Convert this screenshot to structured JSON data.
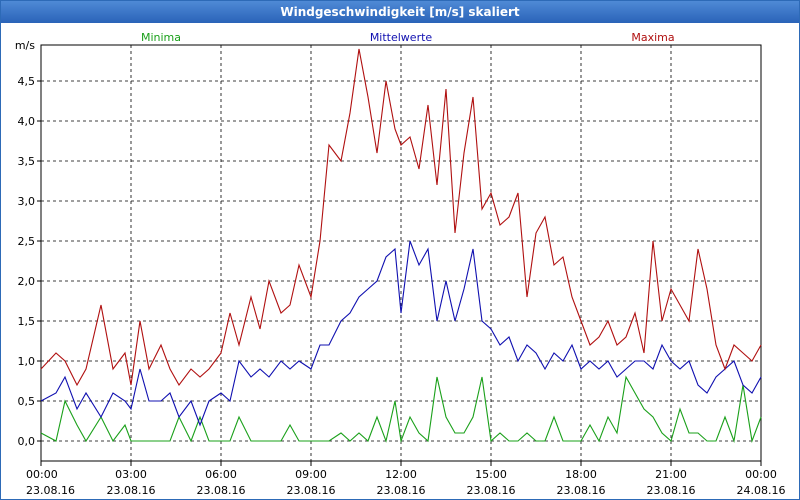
{
  "window": {
    "title": "Windgeschwindigkeit [m/s] skaliert"
  },
  "chart_data": {
    "type": "line",
    "title": "Windgeschwindigkeit [m/s] skaliert",
    "ylabel": "m/s",
    "ylim": [
      -0.25,
      4.95
    ],
    "yticks": [
      0,
      0.5,
      1.0,
      1.5,
      2.0,
      2.5,
      3.0,
      3.5,
      4.0,
      4.5
    ],
    "ytick_labels": [
      "0,0",
      "0,5",
      "1,0",
      "1,5",
      "2,0",
      "2,5",
      "3,0",
      "3,5",
      "4,0",
      "4,5"
    ],
    "xlim": [
      0,
      24
    ],
    "xticks": [
      0,
      3,
      6,
      9,
      12,
      15,
      18,
      21,
      24
    ],
    "xtick_labels": [
      [
        "00:00",
        "23.08.16"
      ],
      [
        "03:00",
        "23.08.16"
      ],
      [
        "06:00",
        "23.08.16"
      ],
      [
        "09:00",
        "23.08.16"
      ],
      [
        "12:00",
        "23.08.16"
      ],
      [
        "15:00",
        "23.08.16"
      ],
      [
        "18:00",
        "23.08.16"
      ],
      [
        "21:00",
        "23.08.16"
      ],
      [
        "00:00",
        "24.08.16"
      ]
    ],
    "grid": true,
    "legend_position": "top",
    "series": [
      {
        "name": "Minima",
        "color": "#1aa01a",
        "x": [
          0,
          0.5,
          0.8,
          1.2,
          1.5,
          2,
          2.4,
          2.8,
          3,
          3.3,
          3.6,
          4,
          4.3,
          4.6,
          5,
          5.3,
          5.6,
          6,
          6.3,
          6.6,
          7,
          7.3,
          7.6,
          8,
          8.3,
          8.6,
          9,
          9.3,
          9.6,
          10,
          10.3,
          10.6,
          10.9,
          11.2,
          11.5,
          11.8,
          12,
          12.3,
          12.6,
          12.9,
          13.2,
          13.5,
          13.8,
          14.1,
          14.4,
          14.7,
          15,
          15.3,
          15.6,
          15.9,
          16.2,
          16.5,
          16.8,
          17.1,
          17.4,
          17.7,
          18,
          18.3,
          18.6,
          18.9,
          19.2,
          19.5,
          19.8,
          20.1,
          20.4,
          20.7,
          21,
          21.3,
          21.6,
          21.9,
          22.2,
          22.5,
          22.8,
          23.1,
          23.4,
          23.7,
          24
        ],
        "y": [
          0.1,
          0.0,
          0.5,
          0.2,
          0.0,
          0.3,
          0.0,
          0.2,
          0.0,
          0.0,
          0.0,
          0.0,
          0.0,
          0.3,
          0.0,
          0.3,
          0.0,
          0.0,
          0.0,
          0.3,
          0.0,
          0.0,
          0.0,
          0.0,
          0.2,
          0.0,
          0.0,
          0.0,
          0.0,
          0.1,
          0.0,
          0.1,
          0.0,
          0.3,
          0.0,
          0.5,
          0.0,
          0.3,
          0.1,
          0.0,
          0.8,
          0.3,
          0.1,
          0.1,
          0.3,
          0.8,
          0.0,
          0.1,
          0.0,
          0.0,
          0.1,
          0.0,
          0.0,
          0.3,
          0.0,
          0.0,
          0.0,
          0.2,
          0.0,
          0.3,
          0.1,
          0.8,
          0.6,
          0.4,
          0.3,
          0.1,
          0.0,
          0.4,
          0.1,
          0.1,
          0.0,
          0.0,
          0.3,
          0.0,
          0.7,
          0.0,
          0.3
        ]
      },
      {
        "name": "Mittelwerte",
        "color": "#1010b0",
        "x": [
          0,
          0.5,
          0.8,
          1.2,
          1.5,
          2,
          2.4,
          2.8,
          3,
          3.3,
          3.6,
          4,
          4.3,
          4.6,
          5,
          5.3,
          5.6,
          6,
          6.3,
          6.6,
          7,
          7.3,
          7.6,
          8,
          8.3,
          8.6,
          9,
          9.3,
          9.6,
          10,
          10.3,
          10.6,
          10.9,
          11.2,
          11.5,
          11.8,
          12,
          12.3,
          12.6,
          12.9,
          13.2,
          13.5,
          13.8,
          14.1,
          14.4,
          14.7,
          15,
          15.3,
          15.6,
          15.9,
          16.2,
          16.5,
          16.8,
          17.1,
          17.4,
          17.7,
          18,
          18.3,
          18.6,
          18.9,
          19.2,
          19.5,
          19.8,
          20.1,
          20.4,
          20.7,
          21,
          21.3,
          21.6,
          21.9,
          22.2,
          22.5,
          22.8,
          23.1,
          23.4,
          23.7,
          24
        ],
        "y": [
          0.5,
          0.6,
          0.8,
          0.4,
          0.6,
          0.3,
          0.6,
          0.5,
          0.4,
          0.9,
          0.5,
          0.5,
          0.6,
          0.3,
          0.5,
          0.2,
          0.5,
          0.6,
          0.5,
          1.0,
          0.8,
          0.9,
          0.8,
          1.0,
          0.9,
          1.0,
          0.9,
          1.2,
          1.2,
          1.5,
          1.6,
          1.8,
          1.9,
          2.0,
          2.3,
          2.4,
          1.6,
          2.5,
          2.2,
          2.4,
          1.5,
          2.0,
          1.5,
          1.9,
          2.4,
          1.5,
          1.4,
          1.2,
          1.3,
          1.0,
          1.2,
          1.1,
          0.9,
          1.1,
          1.0,
          1.2,
          0.9,
          1.0,
          0.9,
          1.0,
          0.8,
          0.9,
          1.0,
          1.0,
          0.9,
          1.2,
          1.0,
          0.9,
          1.0,
          0.7,
          0.6,
          0.8,
          0.9,
          1.0,
          0.7,
          0.6,
          0.8
        ]
      },
      {
        "name": "Maxima",
        "color": "#b01010",
        "x": [
          0,
          0.5,
          0.8,
          1.2,
          1.5,
          2,
          2.4,
          2.8,
          3,
          3.3,
          3.6,
          4,
          4.3,
          4.6,
          5,
          5.3,
          5.6,
          6,
          6.3,
          6.6,
          7,
          7.3,
          7.6,
          8,
          8.3,
          8.6,
          9,
          9.3,
          9.6,
          10,
          10.3,
          10.6,
          10.9,
          11.2,
          11.5,
          11.8,
          12,
          12.3,
          12.6,
          12.9,
          13.2,
          13.5,
          13.8,
          14.1,
          14.4,
          14.7,
          15,
          15.3,
          15.6,
          15.9,
          16.2,
          16.5,
          16.8,
          17.1,
          17.4,
          17.7,
          18,
          18.3,
          18.6,
          18.9,
          19.2,
          19.5,
          19.8,
          20.1,
          20.4,
          20.7,
          21,
          21.3,
          21.6,
          21.9,
          22.2,
          22.5,
          22.8,
          23.1,
          23.4,
          23.7,
          24
        ],
        "y": [
          0.9,
          1.1,
          1.0,
          0.7,
          0.9,
          1.7,
          0.9,
          1.1,
          0.7,
          1.5,
          0.9,
          1.2,
          0.9,
          0.7,
          0.9,
          0.8,
          0.9,
          1.1,
          1.6,
          1.2,
          1.8,
          1.4,
          2.0,
          1.6,
          1.7,
          2.2,
          1.8,
          2.5,
          3.7,
          3.5,
          4.1,
          4.9,
          4.3,
          3.6,
          4.5,
          3.9,
          3.7,
          3.8,
          3.4,
          4.2,
          3.2,
          4.4,
          2.6,
          3.6,
          4.3,
          2.9,
          3.1,
          2.7,
          2.8,
          3.1,
          1.8,
          2.6,
          2.8,
          2.2,
          2.3,
          1.8,
          1.5,
          1.2,
          1.3,
          1.5,
          1.2,
          1.3,
          1.6,
          1.1,
          2.5,
          1.5,
          1.9,
          1.7,
          1.5,
          2.4,
          1.9,
          1.2,
          0.9,
          1.2,
          1.1,
          1.0,
          1.2
        ]
      }
    ]
  }
}
